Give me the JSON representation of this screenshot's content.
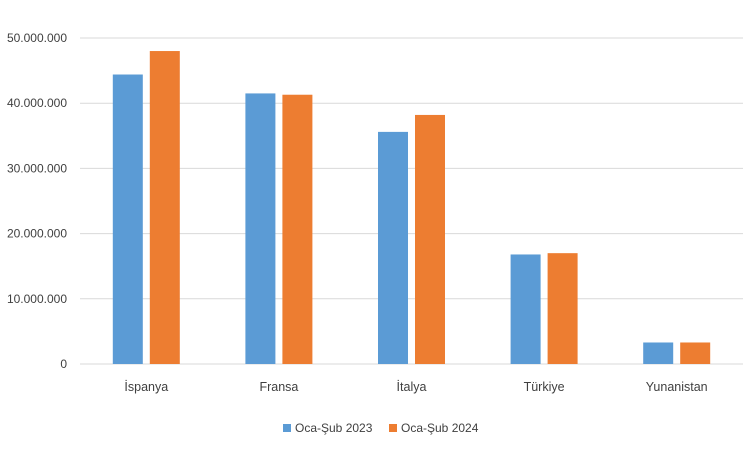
{
  "chart_data": {
    "type": "bar",
    "categories": [
      "İspanya",
      "Fransa",
      "İtalya",
      "Türkiye",
      "Yunanistan"
    ],
    "series": [
      {
        "name": "Oca-Şub 2023",
        "values": [
          44400000,
          41500000,
          35600000,
          16800000,
          3300000
        ]
      },
      {
        "name": "Oca-Şub 2024",
        "values": [
          48000000,
          41300000,
          38200000,
          17000000,
          3300000
        ]
      }
    ],
    "yticks": [
      "0",
      "10.000.000",
      "20.000.000",
      "30.000.000",
      "40.000.000",
      "50.000.000"
    ],
    "ylim": [
      0,
      50000000
    ],
    "grid": true,
    "legend_position": "bottom",
    "colors": [
      "#5b9bd5",
      "#ed7d31"
    ],
    "gridline_color": "#d9d9d9"
  }
}
